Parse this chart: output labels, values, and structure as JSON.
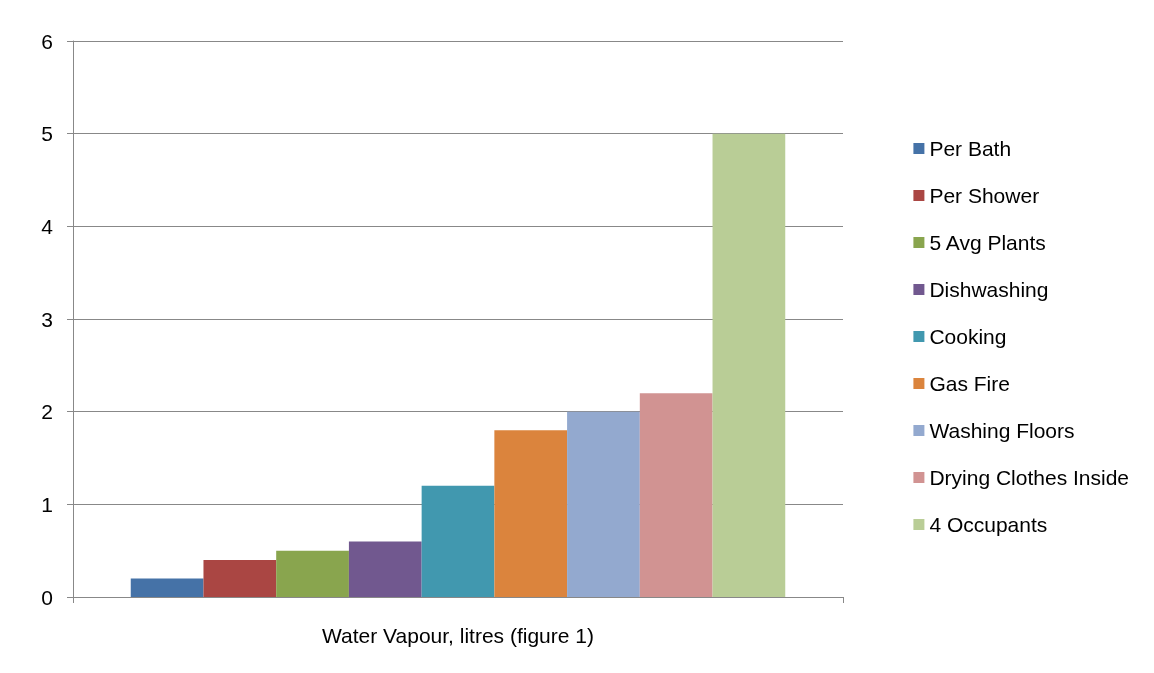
{
  "chart_data": {
    "type": "bar",
    "categories": [
      "Water Vapour, litres (figure 1)"
    ],
    "series": [
      {
        "name": "Per Bath",
        "color": "#4572a7",
        "values": [
          0.2
        ]
      },
      {
        "name": "Per Shower",
        "color": "#aa4643",
        "values": [
          0.4
        ]
      },
      {
        "name": "5 Avg Plants",
        "color": "#89a54e",
        "values": [
          0.5
        ]
      },
      {
        "name": "Dishwashing",
        "color": "#71588f",
        "values": [
          0.6
        ]
      },
      {
        "name": "Cooking",
        "color": "#4198af",
        "values": [
          1.2
        ]
      },
      {
        "name": "Gas Fire",
        "color": "#db843d",
        "values": [
          1.8
        ]
      },
      {
        "name": "Washing Floors",
        "color": "#93a9cf",
        "values": [
          2.0
        ]
      },
      {
        "name": "Drying Clothes Inside",
        "color": "#d19392",
        "values": [
          2.2
        ]
      },
      {
        "name": "4 Occupants",
        "color": "#b9cd96",
        "values": [
          5.0
        ]
      }
    ],
    "ylim": [
      0,
      6
    ],
    "yticks": [
      0,
      1,
      2,
      3,
      4,
      5,
      6
    ],
    "grid": "y",
    "legend": "right"
  }
}
